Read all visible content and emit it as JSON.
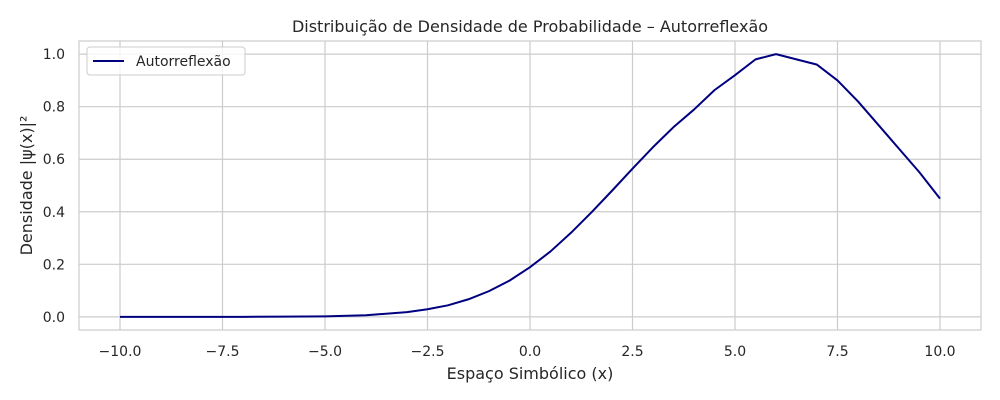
{
  "chart_data": {
    "type": "line",
    "title": "Distribuição de Densidade de Probabilidade – Autorreflexão",
    "xlabel": "Espaço Simbólico (x)",
    "ylabel": "Densidade |ψ(x)|²",
    "xlim": [
      -11.0,
      11.0
    ],
    "ylim": [
      -0.05,
      1.05
    ],
    "xticks": [
      -10.0,
      -7.5,
      -5.0,
      -2.5,
      0.0,
      2.5,
      5.0,
      7.5,
      10.0
    ],
    "xtick_labels": [
      "−10.0",
      "−7.5",
      "−5.0",
      "−2.5",
      "0.0",
      "2.5",
      "5.0",
      "7.5",
      "10.0"
    ],
    "yticks": [
      0.0,
      0.2,
      0.4,
      0.6,
      0.8,
      1.0
    ],
    "ytick_labels": [
      "0.0",
      "0.2",
      "0.4",
      "0.6",
      "0.8",
      "1.0"
    ],
    "grid": true,
    "legend_position": "upper-left",
    "series": [
      {
        "name": "Autorreflexão",
        "color": "#000080",
        "x": [
          -10,
          -9,
          -8,
          -7,
          -6,
          -5,
          -4,
          -3,
          -2.5,
          -2,
          -1.5,
          -1,
          -0.5,
          0,
          0.5,
          1,
          1.5,
          2,
          2.5,
          3,
          3.5,
          4,
          4.5,
          5,
          5.5,
          6,
          6.5,
          7,
          7.5,
          8,
          8.5,
          9,
          9.5,
          10
        ],
        "y": [
          0.0,
          0.0,
          0.0,
          0.0,
          0.001,
          0.002,
          0.006,
          0.018,
          0.029,
          0.044,
          0.067,
          0.098,
          0.138,
          0.189,
          0.249,
          0.32,
          0.398,
          0.48,
          0.564,
          0.646,
          0.722,
          0.789,
          0.863,
          0.92,
          0.98,
          1.0,
          0.98,
          0.96,
          0.9,
          0.82,
          0.73,
          0.64,
          0.55,
          0.45
        ]
      }
    ]
  }
}
